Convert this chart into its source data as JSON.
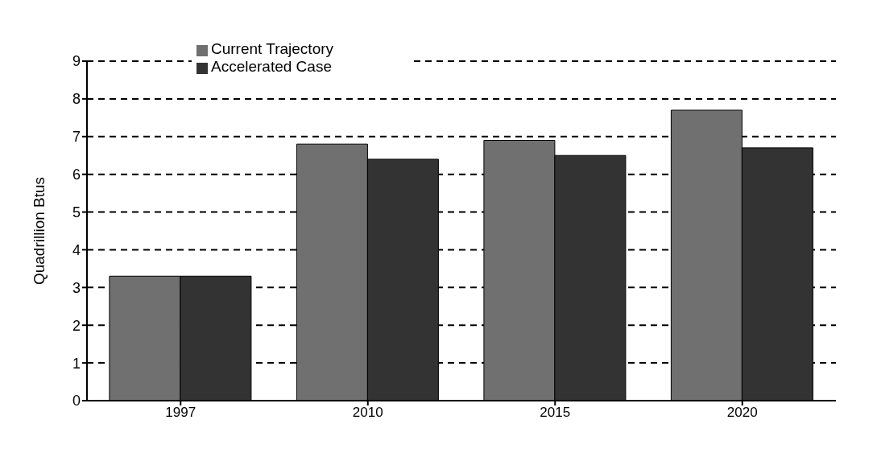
{
  "chart_data": {
    "type": "bar",
    "ylabel": "Quadrillion Btus",
    "categories": [
      "1997",
      "2010",
      "2015",
      "2020"
    ],
    "series": [
      {
        "name": "Current Trajectory",
        "color": "#707070",
        "values": [
          3.3,
          6.8,
          6.9,
          7.7
        ]
      },
      {
        "name": "Accelerated Case",
        "color": "#333333",
        "values": [
          3.3,
          6.4,
          6.5,
          6.7
        ]
      }
    ],
    "ylim": [
      0,
      9
    ],
    "yticks": [
      0,
      1,
      2,
      3,
      4,
      5,
      6,
      7,
      8,
      9
    ],
    "grid": "y",
    "legend": "top left"
  }
}
